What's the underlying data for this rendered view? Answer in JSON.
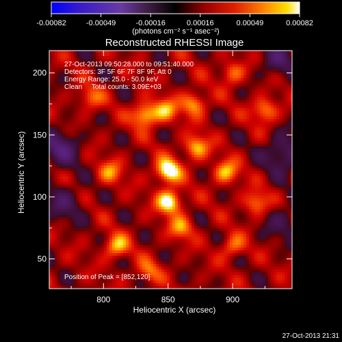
{
  "colorbar": {
    "tick_labels": [
      "-0.00082",
      "-0.00049",
      "-0.00016",
      "0.00016",
      "0.00049",
      "0.00082"
    ],
    "min": -0.00082,
    "max": 0.00082,
    "units_label": "(photons cm⁻² s⁻¹ asec⁻²)"
  },
  "chart_data": {
    "type": "heatmap",
    "title": "Reconstructed RHESSI Image",
    "xlabel": "Heliocentric X (arcsec)",
    "ylabel": "Heliocentric Y (arcsec)",
    "xlim": [
      758,
      946
    ],
    "ylim": [
      26,
      218
    ],
    "xticks": [
      800,
      850,
      900
    ],
    "yticks": [
      50,
      100,
      150,
      200
    ],
    "colorscale": [
      "#0000ff",
      "#5a2cc8",
      "#6a3aa8",
      "#4a2a5a",
      "#3a0000",
      "#9a0000",
      "#e02000",
      "#ff8000",
      "#ffd000",
      "#ffffff"
    ],
    "peak_position": [
      852,
      120
    ],
    "sources": [
      {
        "x": 850,
        "y": 121,
        "value": 0.00082
      },
      {
        "x": 851,
        "y": 96,
        "value": 0.00078
      },
      {
        "x": 832,
        "y": 166,
        "value": 0.00066
      },
      {
        "x": 848,
        "y": 170,
        "value": 0.0005
      },
      {
        "x": 870,
        "y": 175,
        "value": 0.00052
      },
      {
        "x": 872,
        "y": 140,
        "value": 0.00056
      },
      {
        "x": 805,
        "y": 120,
        "value": 0.00042
      },
      {
        "x": 810,
        "y": 60,
        "value": 0.00054
      },
      {
        "x": 860,
        "y": 75,
        "value": 0.00044
      },
      {
        "x": 895,
        "y": 120,
        "value": 0.00054
      },
      {
        "x": 925,
        "y": 170,
        "value": 0.0005
      },
      {
        "x": 918,
        "y": 95,
        "value": 0.00046
      },
      {
        "x": 790,
        "y": 180,
        "value": 0.00036
      },
      {
        "x": 900,
        "y": 60,
        "value": 0.0004
      },
      {
        "x": 835,
        "y": 40,
        "value": 0.00036
      },
      {
        "x": 900,
        "y": 200,
        "value": 0.0004
      }
    ],
    "negative_regions": [
      {
        "x": 766,
        "y": 140,
        "value": -0.00045
      },
      {
        "x": 770,
        "y": 95,
        "value": -0.0003
      },
      {
        "x": 940,
        "y": 135,
        "value": -0.0004
      },
      {
        "x": 935,
        "y": 210,
        "value": -0.0003
      },
      {
        "x": 940,
        "y": 80,
        "value": -0.00025
      }
    ],
    "annotations": [
      "27-Oct-2013 09:50:28.000 to 09:51:40.000",
      "Detectors: 3F 5F 6F 7F 8F 9F, Att 0",
      "Energy Range: 25.0 - 50.0 keV",
      "Clean     Total counts: 3.09E+03"
    ],
    "peak_label": "Position of Peak = [852,120]"
  },
  "footer": {
    "timestamp": "27-Oct-2013 21:31"
  }
}
